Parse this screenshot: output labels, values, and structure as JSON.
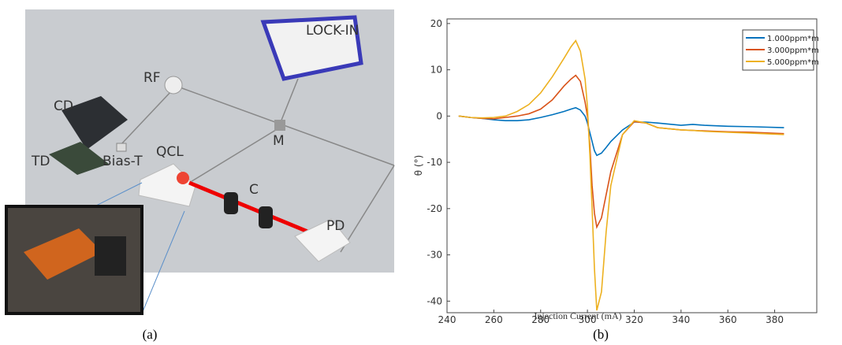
{
  "diagram": {
    "labels": {
      "lockin": "LOCK-IN",
      "rf": "RF",
      "cd": "CD",
      "td": "TD",
      "biast": "Bias-T",
      "qcl": "QCL",
      "c": "C",
      "m": "M",
      "pd": "PD"
    }
  },
  "captions": [
    "(a)",
    "(b)"
  ],
  "chart_data": {
    "type": "line",
    "xlabel": "Injection Current (mA)",
    "ylabel": "θ (°)",
    "x": [
      245,
      250,
      255,
      260,
      265,
      270,
      275,
      280,
      285,
      290,
      293,
      295,
      297,
      299,
      300,
      301,
      302,
      303,
      304,
      306,
      308,
      310,
      315,
      320,
      325,
      330,
      340,
      345,
      350,
      360,
      370,
      384
    ],
    "series": [
      {
        "name": "1.000ppm*m",
        "color": "#0072bd",
        "values": [
          0,
          -0.3,
          -0.5,
          -0.8,
          -1,
          -1,
          -0.8,
          -0.3,
          0.3,
          1,
          1.5,
          1.8,
          1.3,
          0,
          -1.5,
          -3.5,
          -5.5,
          -7.5,
          -8.5,
          -8,
          -6.8,
          -5.5,
          -3,
          -1.3,
          -1.3,
          -1.5,
          -2,
          -1.8,
          -2,
          -2.2,
          -2.3,
          -2.5
        ]
      },
      {
        "name": "3.000ppm*m",
        "color": "#d95319",
        "values": [
          0,
          -0.3,
          -0.5,
          -0.6,
          -0.3,
          0,
          0.5,
          1.5,
          3.5,
          6.5,
          8,
          8.8,
          7.5,
          3,
          0,
          -6,
          -15,
          -21,
          -24,
          -22,
          -17,
          -12,
          -4,
          -1.2,
          -1.5,
          -2.5,
          -3,
          -3.1,
          -3.2,
          -3.4,
          -3.5,
          -3.8
        ]
      },
      {
        "name": "5.000ppm*m",
        "color": "#edb120",
        "values": [
          0,
          -0.3,
          -0.4,
          -0.3,
          0,
          1,
          2.5,
          5,
          8.5,
          12.5,
          15,
          16.3,
          14,
          8,
          2,
          -8,
          -20,
          -33,
          -42,
          -38,
          -25,
          -15,
          -4,
          -1,
          -1.5,
          -2.5,
          -3,
          -3.1,
          -3.3,
          -3.5,
          -3.7,
          -4
        ]
      }
    ],
    "xlim": [
      240,
      398
    ],
    "ylim": [
      -42.5,
      21
    ],
    "xticks": [
      240,
      260,
      280,
      300,
      320,
      340,
      360,
      380
    ],
    "yticks": [
      -40,
      -30,
      -20,
      -10,
      0,
      10,
      20
    ],
    "legend": "upper right"
  }
}
